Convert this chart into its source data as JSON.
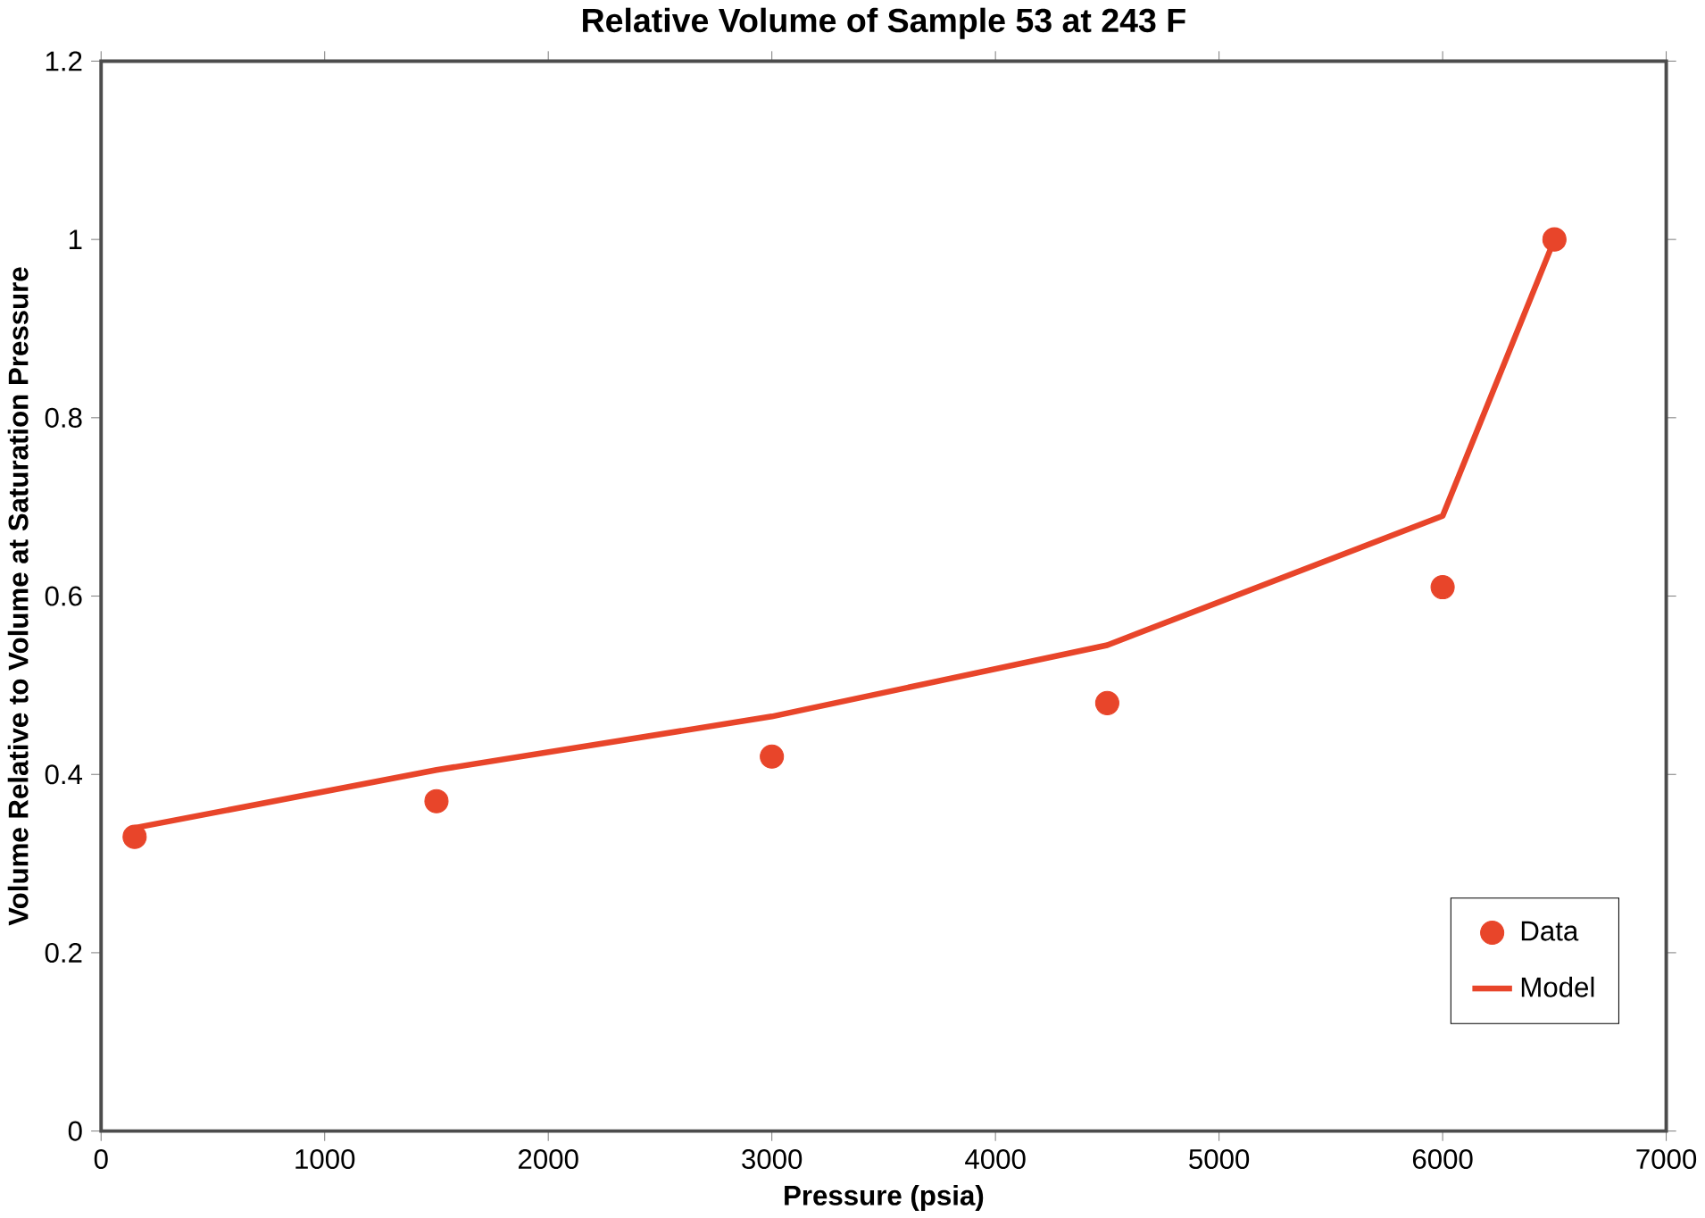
{
  "chart_data": {
    "type": "scatter",
    "title": "Relative Volume of Sample 53 at 243 F",
    "xlabel": "Pressure (psia)",
    "ylabel": "Volume Relative to Volume at Saturation Pressure",
    "xlim": [
      0,
      7000
    ],
    "xticks": [
      0,
      1000,
      2000,
      3000,
      4000,
      5000,
      6000,
      7000
    ],
    "ylim": [
      0,
      1.2
    ],
    "yticks": [
      0,
      0.2,
      0.4,
      0.6,
      0.8,
      1,
      1.2
    ],
    "legend": "bottom right",
    "grid": false,
    "series": [
      {
        "name": "Data",
        "marker": "circle",
        "color": "#e8452a",
        "x": [
          150,
          1500,
          3000,
          4500,
          6000,
          6500
        ],
        "values": [
          0.33,
          0.37,
          0.42,
          0.48,
          0.61,
          1.0
        ]
      },
      {
        "name": "Model",
        "type": "line",
        "marker": "none",
        "line_style": "solid",
        "color": "#e8452a",
        "x": [
          150,
          1500,
          3000,
          4500,
          6000,
          6500
        ],
        "values": [
          0.34,
          0.405,
          0.465,
          0.545,
          0.69,
          1.0
        ]
      }
    ]
  }
}
